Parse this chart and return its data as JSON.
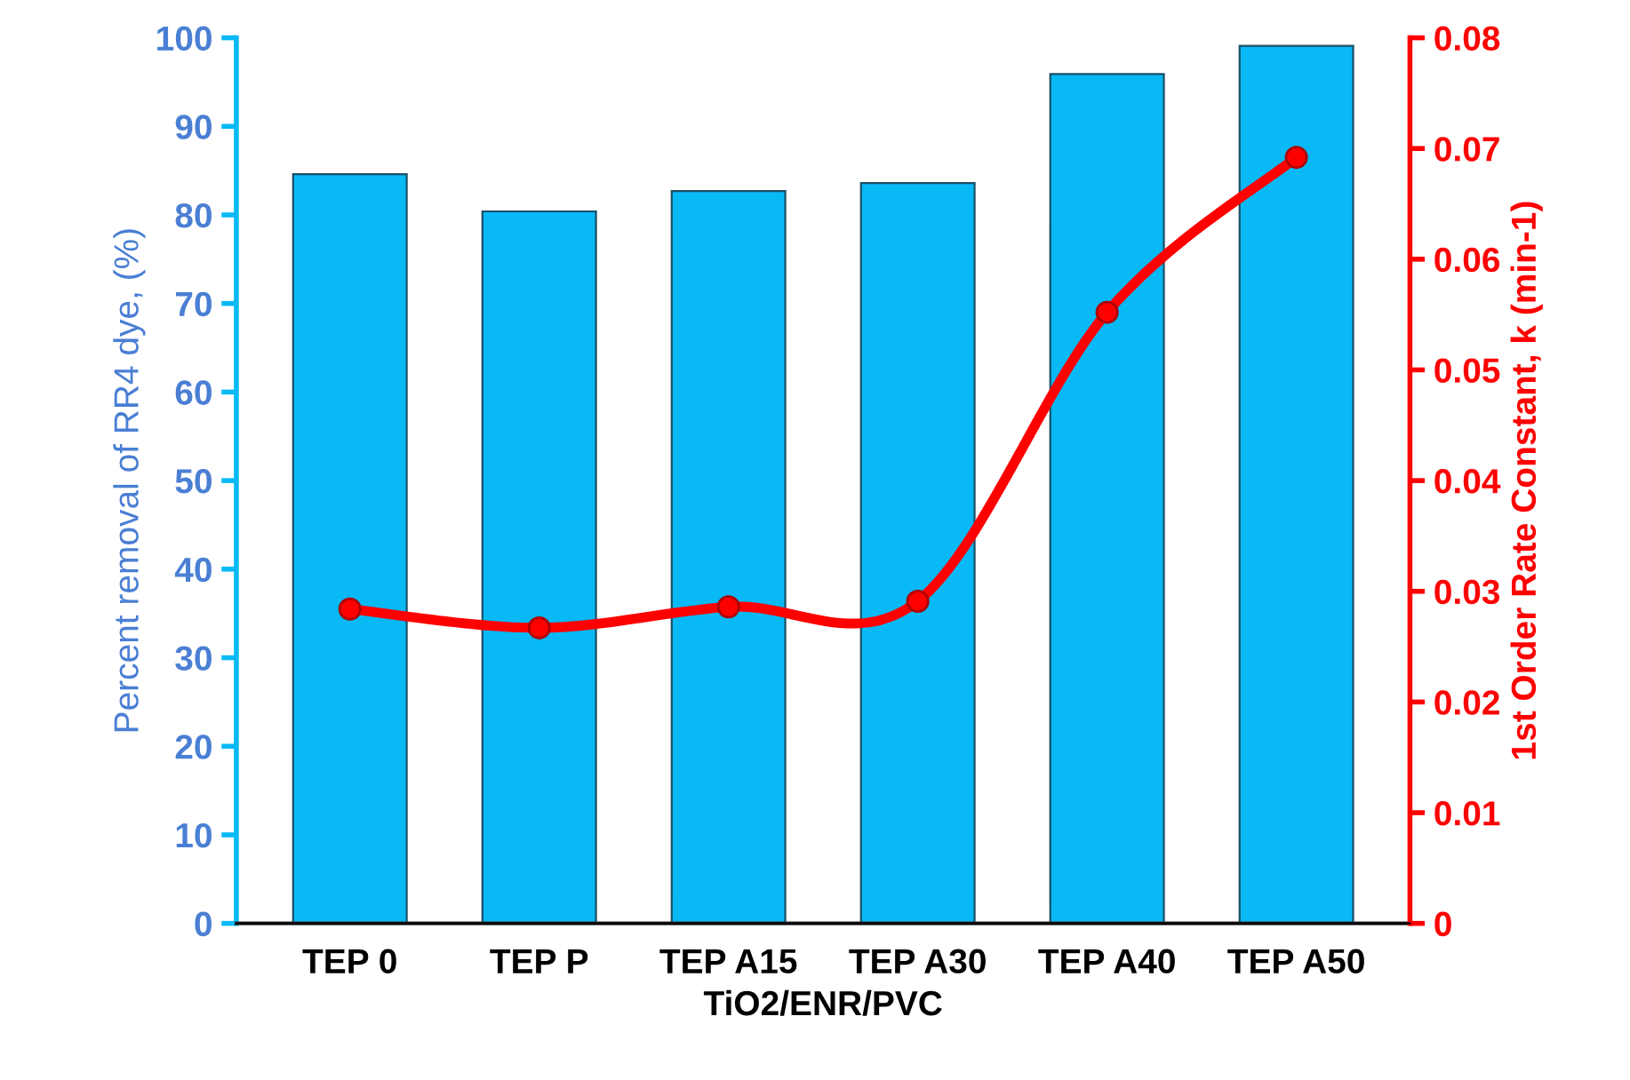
{
  "chart_data": {
    "type": "bar",
    "xlabel": "TiO2/ENR/PVC",
    "ylabel": "Percent removal of RR4 dye, (%)",
    "y2label": "1st Order Rate Constant, k (min-1)",
    "categories": [
      "TEP 0",
      "TEP P",
      "TEP A15",
      "TEP A30",
      "TEP A40",
      "TEP A50"
    ],
    "series": [
      {
        "color": "#08b9f6",
        "values": [
          84.6,
          80.4,
          82.7,
          83.6,
          95.9,
          99.1
        ]
      },
      {
        "type": "line",
        "axis": "y2",
        "color": "#ff0000",
        "marker": "circle",
        "values": [
          0.0284,
          0.0267,
          0.0286,
          0.0291,
          0.0552,
          0.0692
        ]
      }
    ],
    "ylim": [
      0,
      100
    ],
    "yticks": [
      0,
      10,
      20,
      30,
      40,
      50,
      60,
      70,
      80,
      90,
      100
    ],
    "y2lim": [
      0,
      0.08
    ],
    "y2ticks": [
      0,
      0.01,
      0.02,
      0.03,
      0.04,
      0.05,
      0.06,
      0.07,
      0.08
    ],
    "grid": false,
    "legend": false
  }
}
